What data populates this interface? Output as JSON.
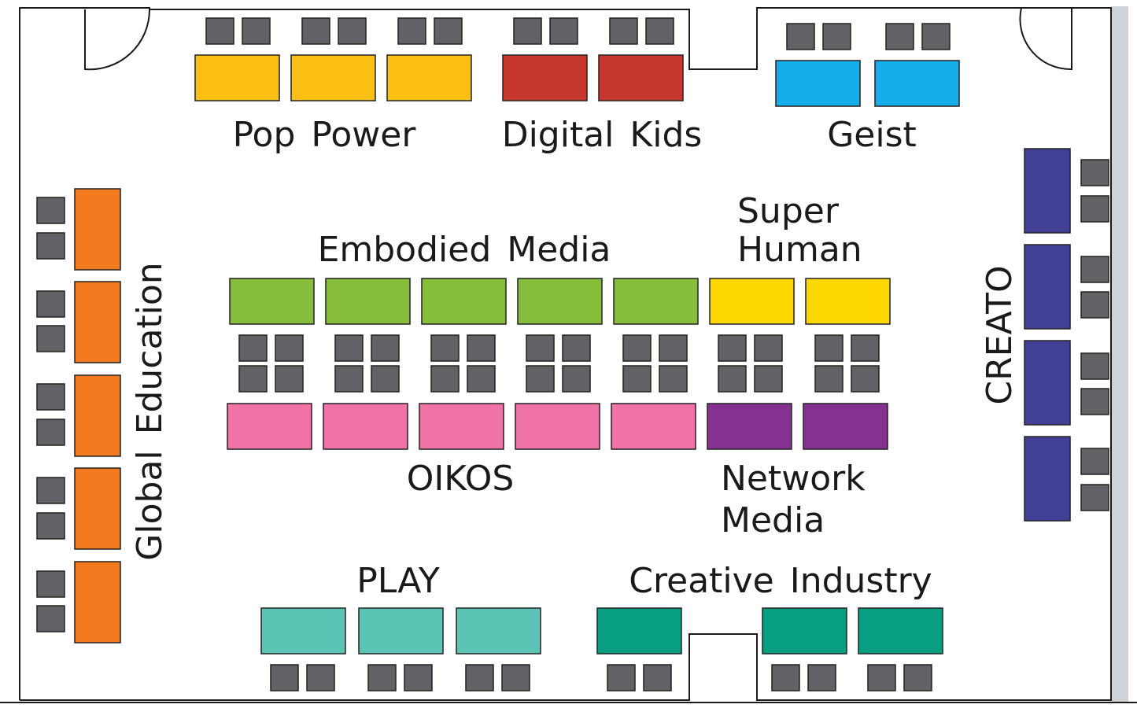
{
  "colors": {
    "wall": "#1a1a1a",
    "seat": "#626266",
    "side_panel": "#cfd2d8",
    "pop_power": "#fcc015",
    "digital_kids": "#c6372e",
    "geist": "#15aeea",
    "embodied_media": "#86bd3a",
    "super_human": "#ffd700",
    "oikos": "#f073a8",
    "network_media": "#853190",
    "global_education": "#f47a20",
    "creato": "#413f96",
    "play": "#5bc4b4",
    "creative_industry": "#079e82"
  },
  "labels": {
    "pop_power": "Pop Power",
    "digital_kids": "Digital Kids",
    "geist": "Geist",
    "embodied_media": "Embodied Media",
    "super_human_line1": "Super",
    "super_human_line2": "Human",
    "oikos": "OIKOS",
    "network_media_line1": "Network",
    "network_media_line2": "Media",
    "play": "PLAY",
    "creative_industry": "Creative Industry",
    "global_education": "Global Education",
    "creato": "CREATO"
  }
}
